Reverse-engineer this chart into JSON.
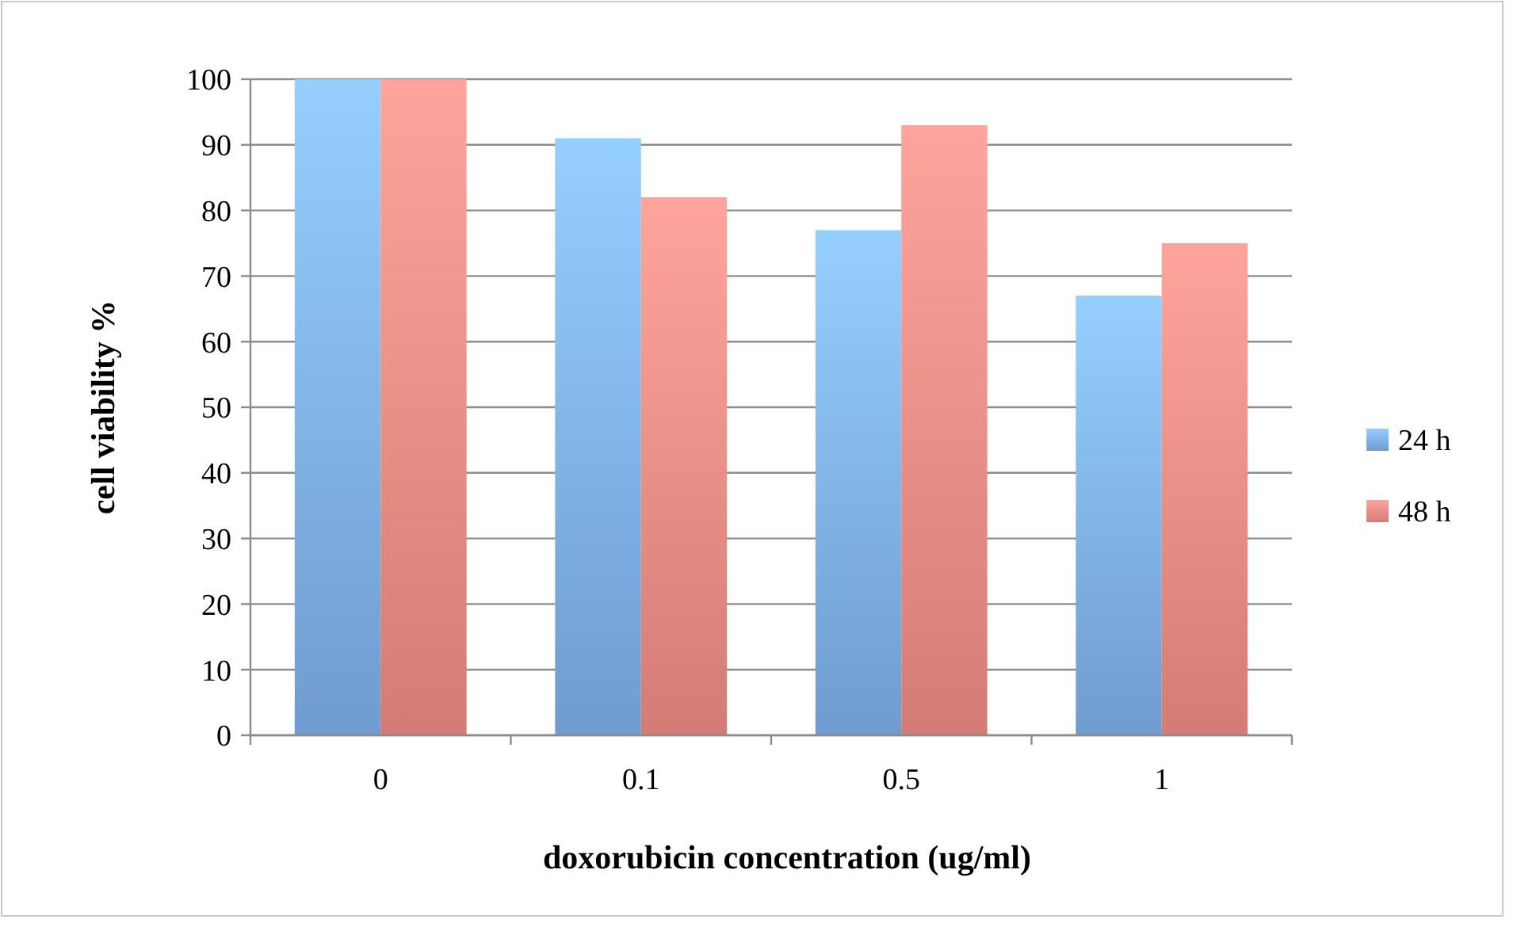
{
  "chart_data": {
    "type": "bar",
    "xlabel": "doxorubicin concentration (ug/ml)",
    "ylabel": "cell viability %",
    "categories": [
      "0",
      "0.1",
      "0.5",
      "1"
    ],
    "series": [
      {
        "name": "24 h",
        "color": "#7fb0ec",
        "values": [
          100,
          91,
          77,
          67
        ]
      },
      {
        "name": "48 h",
        "color": "#ef8c85",
        "values": [
          100,
          82,
          93,
          75
        ]
      }
    ],
    "ylim": [
      0,
      100
    ],
    "yticks": [
      0,
      10,
      20,
      30,
      40,
      50,
      60,
      70,
      80,
      90,
      100
    ],
    "grid": "y",
    "legend": "right"
  }
}
